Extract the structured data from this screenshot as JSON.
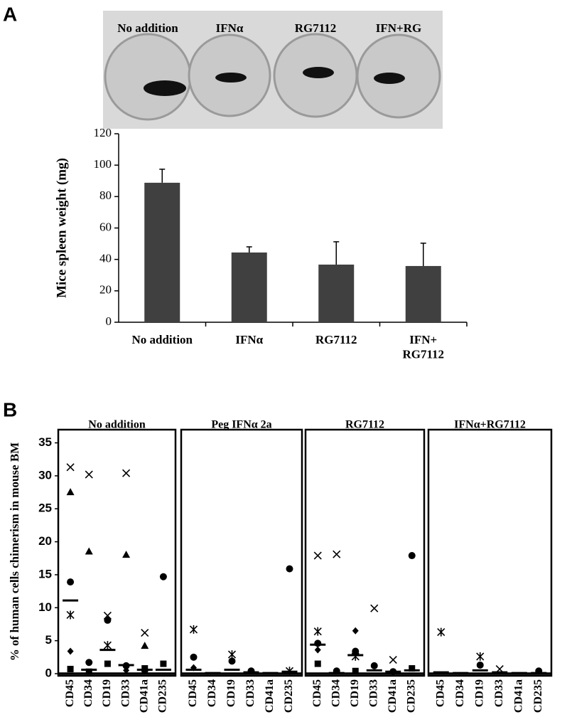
{
  "panel_labels": [
    "A",
    "B"
  ],
  "photo_labels": [
    "No addition",
    "IFNα",
    "RG7112",
    "IFN+RG"
  ],
  "chart_data": [
    {
      "type": "bar",
      "ylabel": "Mice spleen weight (mg)",
      "categories": [
        "No addition",
        "IFNα",
        "RG7112",
        "IFN+\nRG7112"
      ],
      "values": [
        88.8,
        44.4,
        36.7,
        35.8
      ],
      "errors": [
        8.6,
        3.6,
        14.5,
        14.5
      ],
      "color": "#404040",
      "ylim": [
        0,
        120
      ],
      "yticks": [
        0,
        20,
        40,
        60,
        80,
        100,
        120
      ]
    },
    {
      "type": "scatter",
      "title": "No addition",
      "ylabel": "% of human cells chimerism in mouse BM",
      "categories": [
        "CD45",
        "CD34",
        "CD19",
        "CD33",
        "CD41a",
        "CD235"
      ],
      "ylim": [
        0,
        37
      ],
      "yticks": [
        0,
        5,
        10,
        15,
        20,
        25,
        30,
        35
      ],
      "series": [
        {
          "marker": "x",
          "color": "#000000",
          "values": [
            31.3,
            30.2,
            8.8,
            30.4,
            6.2,
            null
          ]
        },
        {
          "marker": "asterisk",
          "color": "#000000",
          "values": [
            8.9,
            null,
            4.3,
            null,
            null,
            null
          ]
        },
        {
          "marker": "triangle",
          "color": "#000000",
          "values": [
            27.5,
            18.5,
            null,
            18.0,
            4.2,
            null
          ]
        },
        {
          "marker": "circle",
          "color": "#000000",
          "values": [
            13.9,
            1.7,
            8.1,
            1.2,
            0.5,
            14.7
          ]
        },
        {
          "marker": "diamond",
          "color": "#000000",
          "values": [
            3.4,
            null,
            null,
            0.5,
            null,
            null
          ]
        },
        {
          "marker": "square",
          "color": "#000000",
          "values": [
            0.7,
            0.3,
            1.5,
            null,
            0.8,
            1.5
          ]
        },
        {
          "marker": "mean",
          "color": "#000000",
          "values": [
            11.1,
            0.6,
            3.6,
            1.3,
            0.6,
            0.6
          ]
        }
      ]
    },
    {
      "type": "scatter",
      "title": "Peg IFNα 2a",
      "categories": [
        "CD45",
        "CD34",
        "CD19",
        "CD33",
        "CD41a",
        "CD235"
      ],
      "ylim": [
        0,
        37
      ],
      "series": [
        {
          "marker": "asterisk",
          "color": "#000000",
          "values": [
            6.7,
            null,
            2.9,
            null,
            null,
            0.4
          ]
        },
        {
          "marker": "circle",
          "color": "#000000",
          "values": [
            2.5,
            null,
            1.9,
            0.4,
            null,
            15.9
          ]
        },
        {
          "marker": "diamond",
          "color": "#000000",
          "values": [
            0.9,
            null,
            null,
            null,
            null,
            null
          ]
        },
        {
          "marker": "mean",
          "color": "#000000",
          "values": [
            0.6,
            0.1,
            0.6,
            0.2,
            0.1,
            0.3
          ]
        }
      ]
    },
    {
      "type": "scatter",
      "title": "RG7112",
      "categories": [
        "CD45",
        "CD34",
        "CD19",
        "CD33",
        "CD41a",
        "CD235"
      ],
      "ylim": [
        0,
        37
      ],
      "series": [
        {
          "marker": "x",
          "color": "#000000",
          "values": [
            17.9,
            18.1,
            null,
            9.9,
            2.1,
            null
          ]
        },
        {
          "marker": "asterisk",
          "color": "#000000",
          "values": [
            6.4,
            null,
            2.6,
            null,
            null,
            null
          ]
        },
        {
          "marker": "circle",
          "color": "#000000",
          "values": [
            4.6,
            0.4,
            3.4,
            1.2,
            0.3,
            17.9
          ]
        },
        {
          "marker": "diamond",
          "color": "#000000",
          "values": [
            3.6,
            null,
            6.5,
            null,
            null,
            null
          ]
        },
        {
          "marker": "square",
          "color": "#000000",
          "values": [
            1.5,
            null,
            0.4,
            null,
            null,
            0.8
          ]
        },
        {
          "marker": "mean",
          "color": "#000000",
          "values": [
            4.4,
            0.1,
            2.8,
            0.5,
            0.3,
            0.5
          ]
        }
      ]
    },
    {
      "type": "scatter",
      "title": "IFNα+RG7112",
      "categories": [
        "CD45",
        "CD34",
        "CD19",
        "CD33",
        "CD41a",
        "CD235"
      ],
      "ylim": [
        0,
        37
      ],
      "series": [
        {
          "marker": "x",
          "color": "#000000",
          "values": [
            null,
            null,
            null,
            0.7,
            null,
            null
          ]
        },
        {
          "marker": "asterisk",
          "color": "#000000",
          "values": [
            6.3,
            null,
            2.6,
            null,
            null,
            null
          ]
        },
        {
          "marker": "circle",
          "color": "#000000",
          "values": [
            null,
            null,
            1.3,
            null,
            null,
            0.4
          ]
        },
        {
          "marker": "mean",
          "color": "#000000",
          "values": [
            0.2,
            0.1,
            0.5,
            0.2,
            0.1,
            0.1
          ]
        }
      ]
    }
  ]
}
